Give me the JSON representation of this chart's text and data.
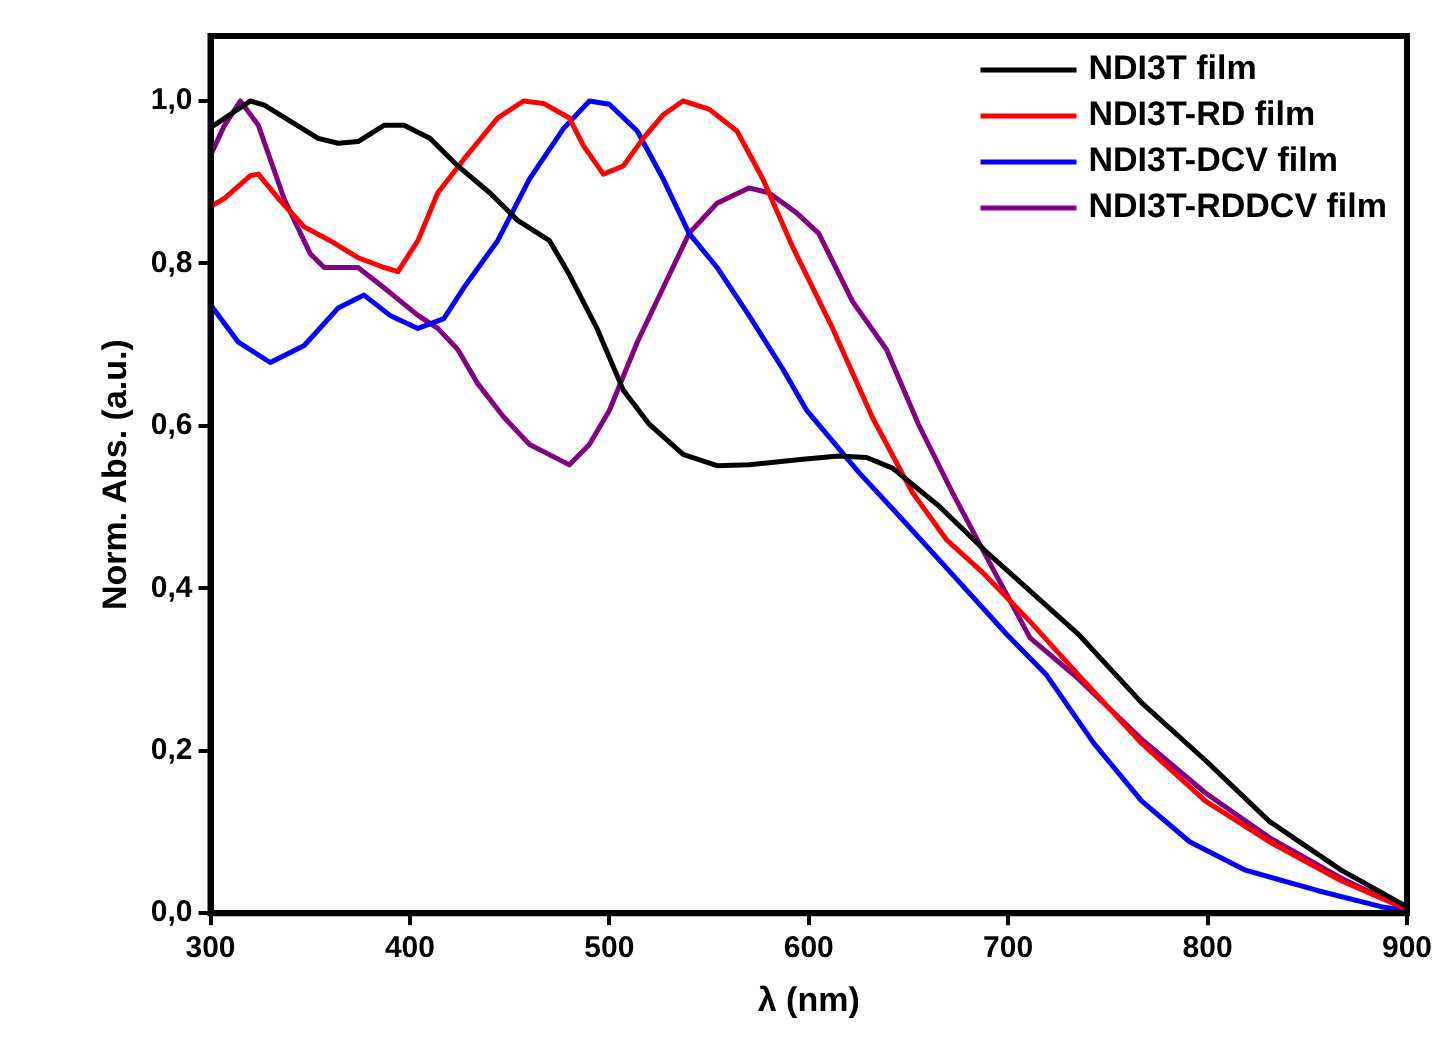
{
  "chart_data": {
    "type": "line",
    "xlabel": "λ (nm)",
    "ylabel": "Norm. Abs. (a.u.)",
    "xlim": [
      300,
      900
    ],
    "xticks": [
      300,
      400,
      500,
      600,
      700,
      800,
      900
    ],
    "ylim": [
      0,
      1.08
    ],
    "yticks": [
      {
        "value": 0,
        "label": "0,0"
      },
      {
        "value": 0.2,
        "label": "0,2"
      },
      {
        "value": 0.4,
        "label": "0,4"
      },
      {
        "value": 0.6,
        "label": "0,6"
      },
      {
        "value": 0.8,
        "label": "0,8"
      },
      {
        "value": 1,
        "label": "1,0"
      }
    ],
    "grid": false,
    "legend": "top right",
    "marker": "none",
    "line_style": "solid",
    "series": [
      {
        "name": "NDI3T film",
        "color": "#000000",
        "x": [
          300,
          320,
          327,
          354,
          364,
          374,
          387,
          397,
          410,
          424,
          440,
          454,
          470,
          480,
          494,
          507,
          520,
          537,
          554,
          570,
          597,
          615,
          629,
          642,
          665,
          689,
          735,
          767,
          799,
          831,
          867,
          897,
          900
        ],
        "values": [
          0.967,
          1.0,
          0.995,
          0.954,
          0.948,
          0.95,
          0.97,
          0.97,
          0.954,
          0.92,
          0.887,
          0.853,
          0.828,
          0.786,
          0.719,
          0.644,
          0.602,
          0.565,
          0.551,
          0.552,
          0.559,
          0.563,
          0.561,
          0.548,
          0.502,
          0.445,
          0.344,
          0.259,
          0.188,
          0.113,
          0.053,
          0.012,
          0.008
        ]
      },
      {
        "name": "NDI3T-RD film",
        "color": "#ff0000",
        "x": [
          300,
          307,
          320,
          324,
          334,
          347,
          360,
          374,
          387,
          394,
          404,
          414,
          427,
          444,
          457,
          467,
          480,
          487,
          497,
          507,
          517,
          527,
          537,
          550,
          564,
          577,
          592,
          612,
          632,
          652,
          669,
          687,
          711,
          735,
          767,
          799,
          831,
          867,
          897,
          900
        ],
        "values": [
          0.87,
          0.88,
          0.908,
          0.91,
          0.88,
          0.845,
          0.828,
          0.807,
          0.795,
          0.79,
          0.828,
          0.887,
          0.928,
          0.979,
          1.0,
          0.997,
          0.979,
          0.945,
          0.91,
          0.92,
          0.954,
          0.983,
          1.0,
          0.99,
          0.963,
          0.904,
          0.82,
          0.72,
          0.61,
          0.518,
          0.46,
          0.42,
          0.359,
          0.294,
          0.209,
          0.138,
          0.088,
          0.04,
          0.008,
          0.005
        ]
      },
      {
        "name": "NDI3T-DCV film",
        "color": "#0000ff",
        "x": [
          300,
          314,
          330,
          347,
          364,
          377,
          390,
          404,
          417,
          427,
          444,
          460,
          477,
          490,
          500,
          514,
          527,
          540,
          554,
          570,
          587,
          599,
          625,
          645,
          671,
          699,
          719,
          743,
          767,
          791,
          819,
          855,
          887,
          900
        ],
        "values": [
          0.749,
          0.703,
          0.678,
          0.699,
          0.745,
          0.761,
          0.736,
          0.72,
          0.732,
          0.77,
          0.828,
          0.904,
          0.966,
          1.0,
          0.996,
          0.963,
          0.904,
          0.837,
          0.795,
          0.736,
          0.67,
          0.619,
          0.543,
          0.49,
          0.42,
          0.344,
          0.294,
          0.209,
          0.138,
          0.088,
          0.053,
          0.028,
          0.008,
          0.003
        ]
      },
      {
        "name": "NDI3T-RDDCV film",
        "color": "#800080",
        "x": [
          300,
          307,
          315,
          324,
          337,
          350,
          357,
          374,
          387,
          404,
          414,
          424,
          434,
          447,
          460,
          480,
          490,
          500,
          514,
          527,
          540,
          554,
          570,
          580,
          594,
          605,
          622,
          639,
          655,
          672,
          691,
          711,
          735,
          767,
          799,
          831,
          867,
          897,
          900
        ],
        "values": [
          0.933,
          0.97,
          1.0,
          0.97,
          0.879,
          0.812,
          0.795,
          0.795,
          0.77,
          0.736,
          0.72,
          0.694,
          0.652,
          0.611,
          0.577,
          0.552,
          0.577,
          0.619,
          0.703,
          0.77,
          0.837,
          0.874,
          0.893,
          0.887,
          0.862,
          0.837,
          0.753,
          0.694,
          0.602,
          0.518,
          0.43,
          0.339,
          0.289,
          0.214,
          0.148,
          0.093,
          0.043,
          0.008,
          0.005
        ]
      }
    ]
  }
}
